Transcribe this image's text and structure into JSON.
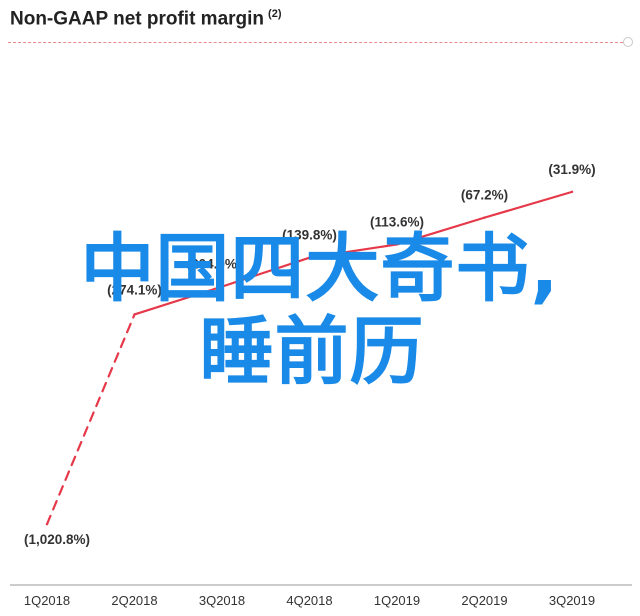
{
  "header": {
    "title": "Non-GAAP net profit margin",
    "footnote": "(2)"
  },
  "overlay": {
    "line1": "中国四大奇书,",
    "line2": "睡前历"
  },
  "colors": {
    "series": "#e5394a",
    "axis": "#999999",
    "label": "#333333",
    "overlay_text": "#1a8ae8"
  },
  "chart_data": {
    "type": "line",
    "title": "Non-GAAP net profit margin",
    "categories": [
      "1Q2018",
      "2Q2018",
      "3Q2018",
      "4Q2018",
      "1Q2019",
      "2Q2019",
      "3Q2019"
    ],
    "values": [
      -1020.8,
      -274.1,
      -204.0,
      -139.8,
      -113.6,
      -67.2,
      -31.9
    ],
    "data_labels": [
      "(1,020.8%)",
      "(274.1%)",
      "(204.0%)",
      "(139.8%)",
      "(113.6%)",
      "(67.2%)",
      "(31.9%)"
    ],
    "segment_styles": [
      "dashed",
      "solid",
      "solid",
      "solid",
      "solid",
      "solid"
    ],
    "ylim": [
      -1100,
      0
    ],
    "grid": false,
    "legend": "none"
  }
}
